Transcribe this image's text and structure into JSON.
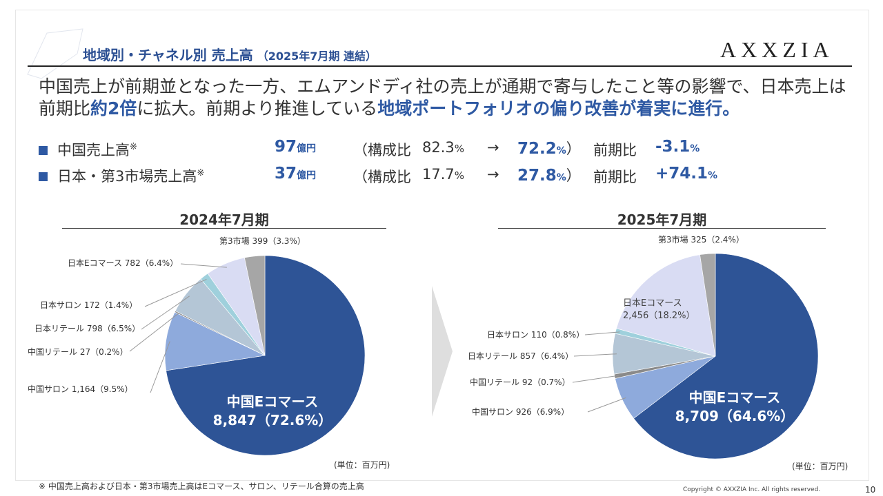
{
  "header": {
    "title": "地域別・チャネル別 売上高",
    "subtitle": "（2025年7月期 連結）",
    "logo": "AXXZIA"
  },
  "lead": {
    "part1": "中国売上が前期並となった一方、エムアンドディ社の売上が通期で寄与したこと等の影響で、日本売上は前期比",
    "hl1": "約2倍",
    "part2": "に拡大。前期より推進している",
    "hl2": "地域ポートフォリオの偏り改善が着実に進行。"
  },
  "kpis": [
    {
      "label": "中国売上高",
      "mark": "※",
      "value": "97",
      "unit": "億円",
      "ratio_label": "（構成比",
      "prev_ratio": "82.3",
      "cur_ratio": "72.2",
      "pct": "%",
      "arrow": "→",
      "close": "）",
      "yoy_label": "前期比",
      "yoy": "-3.1",
      "yoy_pct": "%"
    },
    {
      "label": "日本・第3市場売上高",
      "mark": "※",
      "value": "37",
      "unit": "億円",
      "ratio_label": "（構成比",
      "prev_ratio": "17.7",
      "cur_ratio": "27.8",
      "pct": "%",
      "arrow": "→",
      "close": "）",
      "yoy_label": "前期比",
      "yoy": "+74.1",
      "yoy_pct": "%"
    }
  ],
  "colors": {
    "china_ec": "#2e5496",
    "china_salon": "#8eaadc",
    "china_retail": "#8a8a8a",
    "japan_retail": "#b4c6d6",
    "japan_salon": "#9fd0dc",
    "japan_ec": "#d9dcf3",
    "third": "#a6a6a6",
    "accent": "#2e59a3"
  },
  "chart_data": [
    {
      "type": "pie",
      "title": "2024年7月期",
      "unit": "(単位：百万円)",
      "slices": [
        {
          "name": "中国Eコマース",
          "value": 8847,
          "pct": "72.6%",
          "label": "中国Eコマース 8,847（72.6%）",
          "color": "#2e5496"
        },
        {
          "name": "中国サロン",
          "value": 1164,
          "pct": "9.5%",
          "label": "中国サロン 1,164（9.5%）",
          "color": "#8eaadc"
        },
        {
          "name": "中国リテール",
          "value": 27,
          "pct": "0.2%",
          "label": "中国リテール 27（0.2%）",
          "color": "#8a8a8a"
        },
        {
          "name": "日本リテール",
          "value": 798,
          "pct": "6.5%",
          "label": "日本リテール 798（6.5%）",
          "color": "#b4c6d6"
        },
        {
          "name": "日本サロン",
          "value": 172,
          "pct": "1.4%",
          "label": "日本サロン 172（1.4%）",
          "color": "#9fd0dc"
        },
        {
          "name": "日本Eコマース",
          "value": 782,
          "pct": "6.4%",
          "label": "日本Eコマース 782（6.4%）",
          "color": "#d9dcf3"
        },
        {
          "name": "第3市場",
          "value": 399,
          "pct": "3.3%",
          "label": "第3市場 399（3.3%）",
          "color": "#a6a6a6"
        }
      ],
      "inside_label": {
        "line1": "中国Eコマース",
        "line2": "8,847（72.6%）"
      }
    },
    {
      "type": "pie",
      "title": "2025年7月期",
      "unit": "(単位：百万円)",
      "slices": [
        {
          "name": "中国Eコマース",
          "value": 8709,
          "pct": "64.6%",
          "label": "中国Eコマース 8,709（64.6%）",
          "color": "#2e5496"
        },
        {
          "name": "中国サロン",
          "value": 926,
          "pct": "6.9%",
          "label": "中国サロン 926（6.9%）",
          "color": "#8eaadc"
        },
        {
          "name": "中国リテール",
          "value": 92,
          "pct": "0.7%",
          "label": "中国リテール 92（0.7%）",
          "color": "#8a8a8a"
        },
        {
          "name": "日本リテール",
          "value": 857,
          "pct": "6.4%",
          "label": "日本リテール 857（6.4%）",
          "color": "#b4c6d6"
        },
        {
          "name": "日本サロン",
          "value": 110,
          "pct": "0.8%",
          "label": "日本サロン 110（0.8%）",
          "color": "#9fd0dc"
        },
        {
          "name": "日本Eコマース",
          "value": 2456,
          "pct": "18.2%",
          "label": "日本Eコマース 2,456（18.2%）",
          "color": "#d9dcf3"
        },
        {
          "name": "第3市場",
          "value": 325,
          "pct": "2.4%",
          "label": "第3市場 325（2.4%）",
          "color": "#a6a6a6"
        }
      ],
      "inside_label": {
        "line1": "中国Eコマース",
        "line2": "8,709（64.6%）"
      },
      "japan_ec_label": {
        "line1": "日本Eコマース",
        "line2": "2,456（18.2%）"
      }
    }
  ],
  "footer": {
    "note": "※ 中国売上高および日本・第3市場売上高はEコマース、サロン、リテール合算の売上高",
    "copyright": "Copyright © AXXZIA Inc. All rights reserved.",
    "page": "10"
  }
}
